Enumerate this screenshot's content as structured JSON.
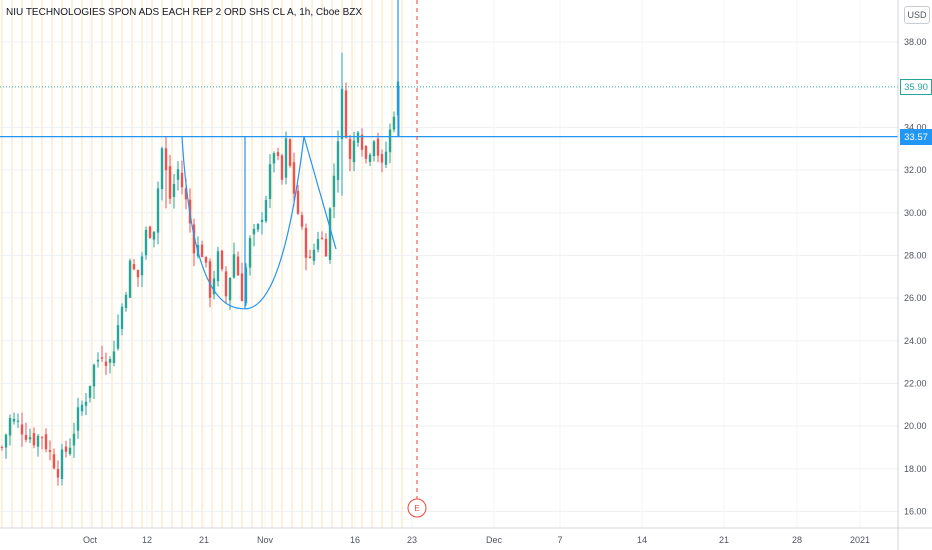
{
  "title": "NIU TECHNOLOGIES SPON ADS EACH REP 2 ORD SHS CL A, 1h, Cboe BZX",
  "currency": "USD",
  "earnings_marker": "E",
  "price_tags": [
    {
      "label": "35.90",
      "value": 35.9,
      "bg": "#ffffff",
      "fg": "#26a69a",
      "line_color": "#26a69a",
      "line_style": "dotted"
    },
    {
      "label": "33.57",
      "value": 33.57,
      "bg": "#2196f3",
      "fg": "#ffffff",
      "line_color": "#2196f3",
      "line_style": "solid"
    }
  ],
  "colors": {
    "up": "#26a69a",
    "down": "#ef5350",
    "drawing": "#2196f3",
    "earnings": "#f44336",
    "session_line": "#ffe0b2"
  },
  "chart_data": {
    "type": "candlestick",
    "title": "NIU TECHNOLOGIES SPON ADS EACH REP 2 ORD SHS CL A, 1h, Cboe BZX",
    "ylim": [
      15.6,
      39.6
    ],
    "y_ticks": [
      "16.00",
      "18.00",
      "20.00",
      "22.00",
      "24.00",
      "26.00",
      "28.00",
      "30.00",
      "32.00",
      "34.00",
      "38.00"
    ],
    "x_ticks": [
      "Oct",
      "12",
      "21",
      "Nov",
      "16",
      "23",
      "Dec",
      "7",
      "14",
      "21",
      "28",
      "2021"
    ],
    "horizontal_line": 33.57,
    "last_price": 35.9,
    "close_path": [
      [
        0,
        19.0
      ],
      [
        2,
        20.3
      ],
      [
        4,
        20.1
      ],
      [
        6,
        19.7
      ],
      [
        8,
        19.4
      ],
      [
        10,
        19.6
      ],
      [
        12,
        18.7
      ],
      [
        14,
        18.0
      ],
      [
        15,
        18.5
      ],
      [
        17,
        19.2
      ],
      [
        19,
        20.5
      ],
      [
        21,
        21.4
      ],
      [
        23,
        22.8
      ],
      [
        25,
        23.5
      ],
      [
        27,
        23.0
      ],
      [
        28,
        23.8
      ],
      [
        30,
        25.6
      ],
      [
        32,
        27.5
      ],
      [
        34,
        27.0
      ],
      [
        36,
        29.0
      ],
      [
        38,
        29.4
      ],
      [
        40,
        33.0
      ],
      [
        42,
        30.7
      ],
      [
        44,
        32.0
      ],
      [
        46,
        30.5
      ],
      [
        48,
        28.5
      ],
      [
        50,
        28.2
      ],
      [
        52,
        26.3
      ],
      [
        54,
        27.9
      ],
      [
        56,
        26.1
      ],
      [
        58,
        28.1
      ],
      [
        60,
        26.2
      ],
      [
        62,
        28.6
      ],
      [
        64,
        29.2
      ],
      [
        66,
        30.8
      ],
      [
        68,
        33.0
      ],
      [
        70,
        31.5
      ],
      [
        71,
        33.2
      ],
      [
        73,
        31.0
      ],
      [
        75,
        29.0
      ],
      [
        77,
        27.6
      ],
      [
        79,
        29.0
      ],
      [
        81,
        28.4
      ],
      [
        83,
        31.8
      ],
      [
        85,
        35.5
      ],
      [
        87,
        32.4
      ],
      [
        89,
        34.2
      ],
      [
        91,
        32.5
      ],
      [
        93,
        33.7
      ],
      [
        95,
        32.0
      ],
      [
        97,
        33.8
      ],
      [
        99,
        35.9
      ]
    ],
    "spikes": [
      {
        "bar": 85,
        "high": 37.5,
        "low": 30.8
      },
      {
        "bar": 28,
        "high": 24.0,
        "low": 22.8
      },
      {
        "bar": 41,
        "high": 33.6,
        "low": 30.2
      }
    ],
    "cup_and_handle": {
      "left_rim": 33.57,
      "bottom": 25.5,
      "right_rim": 33.57,
      "handle_low": 28.3
    }
  }
}
